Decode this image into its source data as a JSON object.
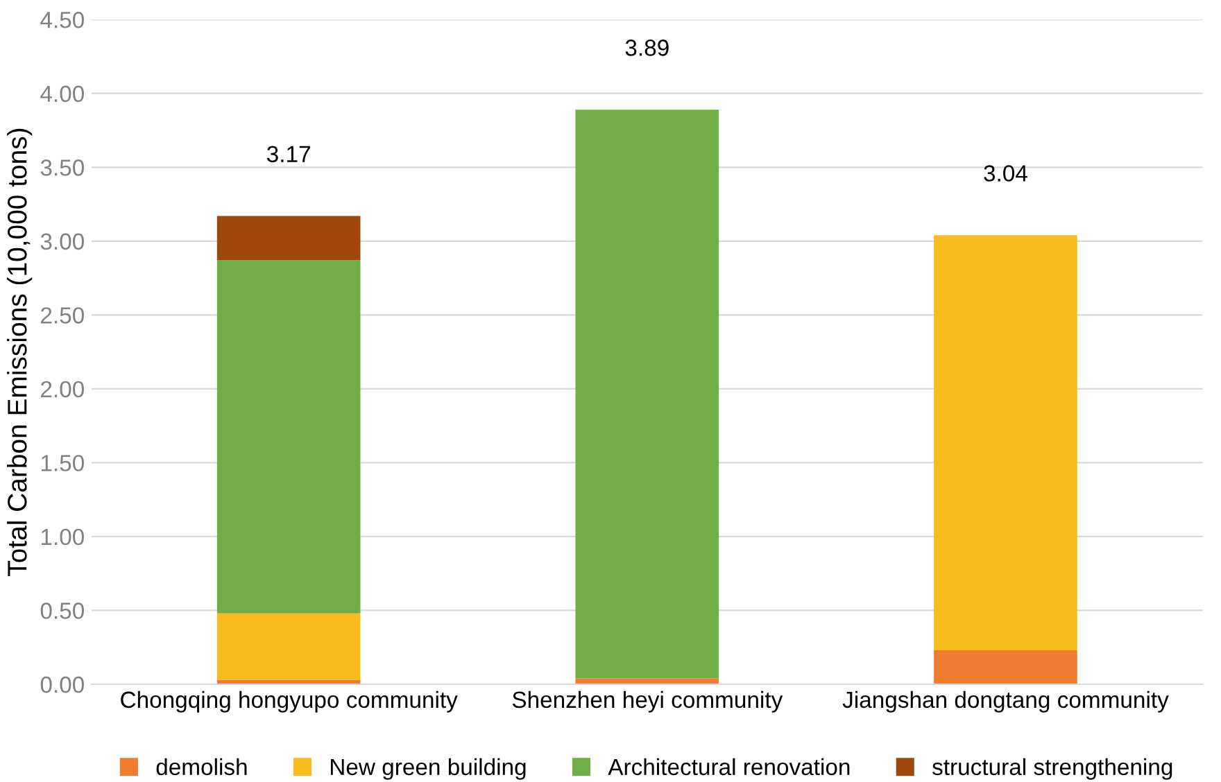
{
  "chart_data": {
    "type": "bar",
    "stacked": true,
    "ylabel": "Total Carbon Emissions (10,000 tons)",
    "categories": [
      "Chongqing hongyupo community",
      "Shenzhen heyi community",
      "Jiangshan dongtang community"
    ],
    "series": [
      {
        "name": "demolish",
        "color": "#ed7d31",
        "values": [
          0.03,
          0.04,
          0.23
        ]
      },
      {
        "name": "New green building",
        "color": "#f9bc1f",
        "values": [
          0.45,
          0,
          2.81
        ]
      },
      {
        "name": "Architectural renovation",
        "color": "#70ad47",
        "values": [
          2.39,
          3.85,
          0
        ]
      },
      {
        "name": "structural strengthening",
        "color": "#9e480e",
        "values": [
          0.3,
          0,
          0
        ]
      }
    ],
    "totals": [
      "3.17",
      "3.89",
      "3.04"
    ],
    "ylim": [
      0,
      4.5
    ],
    "yticks": [
      {
        "value": 0,
        "label": "0.00"
      },
      {
        "value": 0.5,
        "label": "0.50"
      },
      {
        "value": 1,
        "label": "1.00"
      },
      {
        "value": 1.5,
        "label": "1.50"
      },
      {
        "value": 2,
        "label": "2.00"
      },
      {
        "value": 2.5,
        "label": "2.50"
      },
      {
        "value": 3,
        "label": "3.00"
      },
      {
        "value": 3.5,
        "label": "3.50"
      },
      {
        "value": 4,
        "label": "4.00"
      },
      {
        "value": 4.5,
        "label": "4.50"
      }
    ],
    "grid": "y",
    "legend": "bottom"
  }
}
